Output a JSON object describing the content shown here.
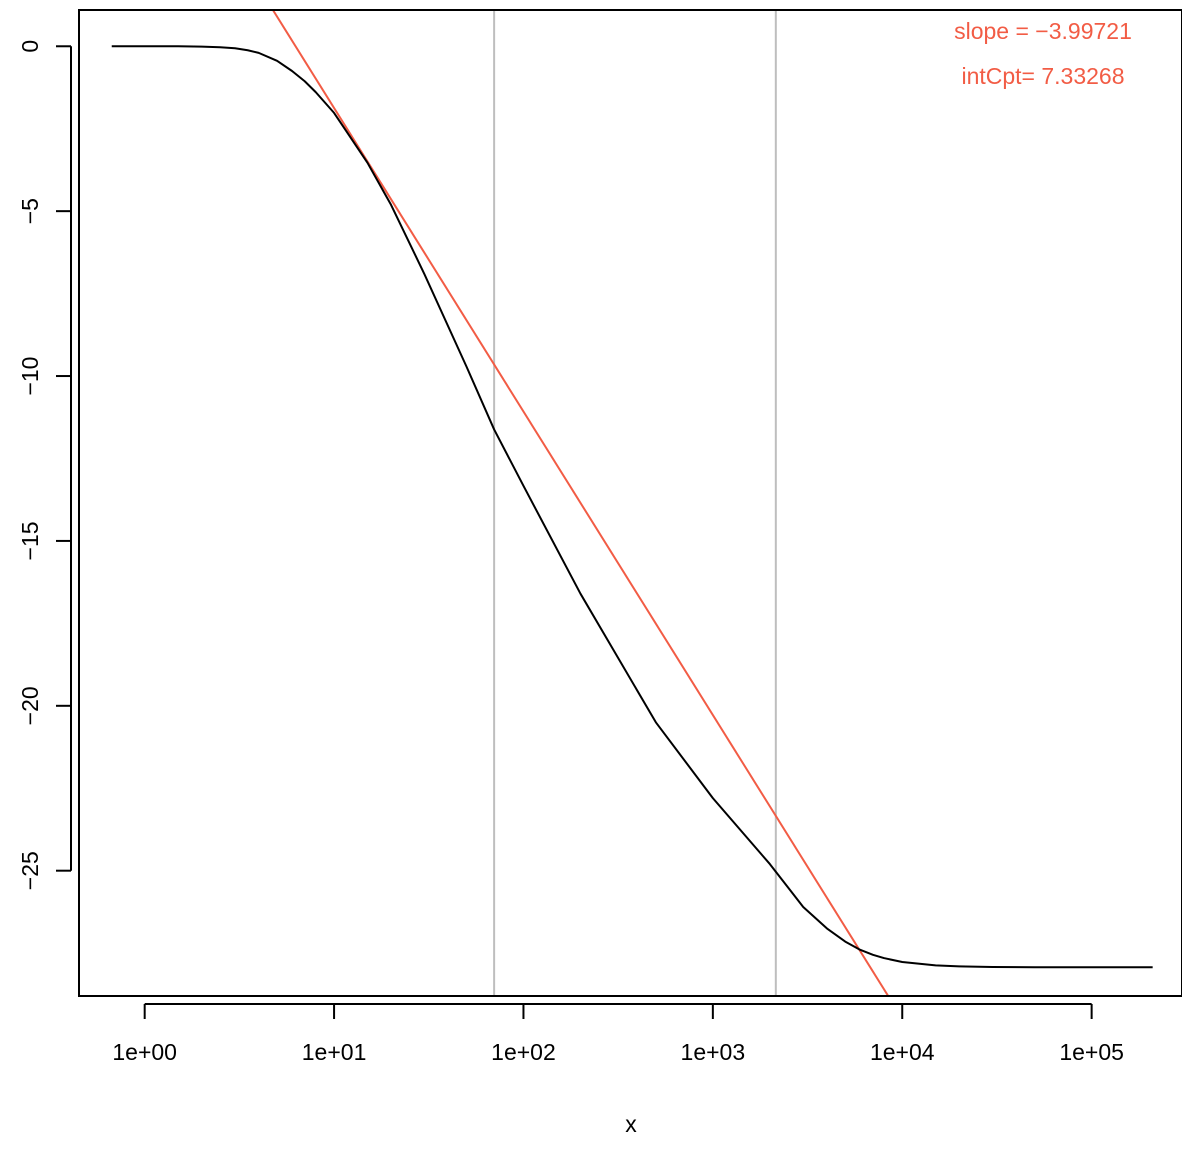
{
  "chart_data": {
    "type": "line",
    "xlabel": "x",
    "ylabel": "",
    "x_scale": "log10",
    "xlim": [
      0.45,
      300000
    ],
    "ylim": [
      -28.8,
      1.1
    ],
    "x_ticks": [
      {
        "value": 1,
        "label": "1e+00"
      },
      {
        "value": 10,
        "label": "1e+01"
      },
      {
        "value": 100,
        "label": "1e+02"
      },
      {
        "value": 1000,
        "label": "1e+03"
      },
      {
        "value": 10000,
        "label": "1e+04"
      },
      {
        "value": 100000,
        "label": "1e+05"
      }
    ],
    "y_ticks": [
      {
        "value": 0,
        "label": "0"
      },
      {
        "value": -5,
        "label": "−5"
      },
      {
        "value": -10,
        "label": "−10"
      },
      {
        "value": -15,
        "label": "−15"
      },
      {
        "value": -20,
        "label": "−20"
      },
      {
        "value": -25,
        "label": "−25"
      }
    ],
    "series": [
      {
        "color": "#000000",
        "x": [
          0.67,
          1,
          1.5,
          2,
          2.5,
          3,
          3.5,
          4,
          5,
          6,
          7,
          8,
          10,
          15,
          20,
          30,
          50,
          70,
          100,
          200,
          500,
          1000,
          2000,
          3000,
          4000,
          5000,
          6000,
          7000,
          8000,
          10000,
          15000,
          20000,
          30000,
          50000,
          100000,
          210000
        ],
        "y": [
          0,
          0,
          0,
          -0.01,
          -0.03,
          -0.06,
          -0.12,
          -0.2,
          -0.44,
          -0.75,
          -1.06,
          -1.39,
          -2.02,
          -3.53,
          -4.81,
          -6.91,
          -9.71,
          -11.62,
          -13.33,
          -16.6,
          -20.5,
          -22.8,
          -24.8,
          -26.1,
          -26.75,
          -27.15,
          -27.4,
          -27.55,
          -27.65,
          -27.77,
          -27.87,
          -27.9,
          -27.92,
          -27.93,
          -27.93,
          -27.93
        ]
      }
    ],
    "fit_line": {
      "color": "#f25c45",
      "slope": -3.99721,
      "intercept": 7.33268,
      "x_range": [
        4.7,
        9000
      ]
    },
    "vlines": {
      "color": "#bebebe",
      "x": [
        70,
        2150
      ]
    },
    "annotations": {
      "color": "#f25c45",
      "slope_text": "slope = −3.99721",
      "intercept_text": "intCpt= 7.33268"
    }
  }
}
